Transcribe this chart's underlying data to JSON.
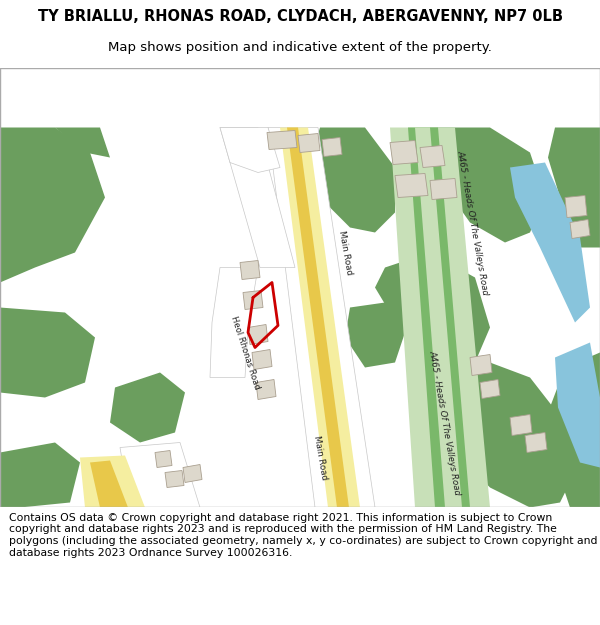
{
  "title": "TY BRIALLU, RHONAS ROAD, CLYDACH, ABERGAVENNY, NP7 0LB",
  "subtitle": "Map shows position and indicative extent of the property.",
  "footer": "Contains OS data © Crown copyright and database right 2021. This information is subject to Crown copyright and database rights 2023 and is reproduced with the permission of HM Land Registry. The polygons (including the associated geometry, namely x, y co-ordinates) are subject to Crown copyright and database rights 2023 Ordnance Survey 100026316.",
  "bg_color": "#ffffff",
  "map_bg": "#f8f8f5",
  "green_color": "#6b9e5e",
  "road_yellow": "#e8c84a",
  "road_light_yellow": "#f5eea0",
  "road_white": "#ffffff",
  "road_outline": "#c8c8c8",
  "road_green_dark": "#7ab86a",
  "road_green_light": "#c8e0b8",
  "road_green_mid": "#a8cc90",
  "building_fill": "#ddd8cc",
  "building_edge": "#aaa090",
  "river_color": "#88c4dc",
  "red_outline": "#cc0000",
  "title_fontsize": 10.5,
  "subtitle_fontsize": 9.5,
  "footer_fontsize": 7.8
}
